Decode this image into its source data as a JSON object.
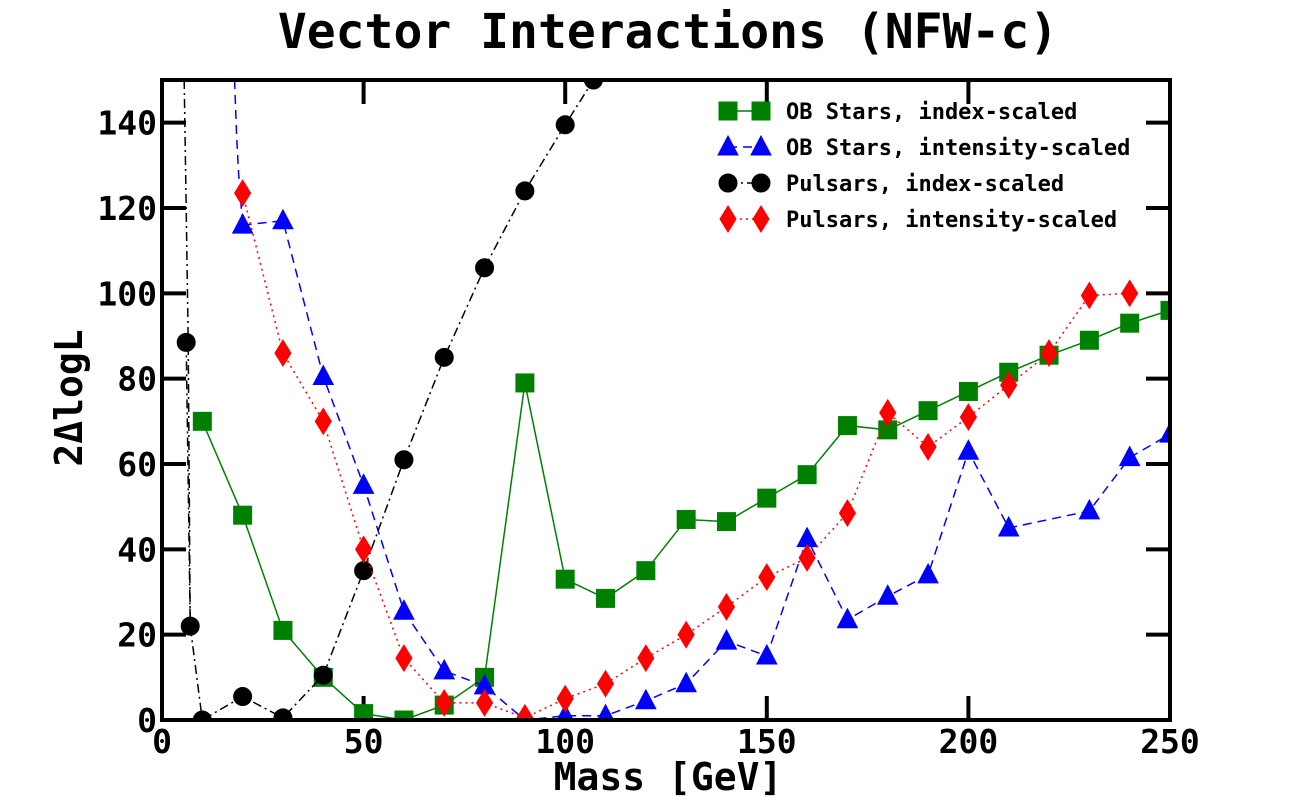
{
  "chart_data": {
    "type": "line",
    "title": "Vector Interactions (NFW-c)",
    "xlabel": "Mass [GeV]",
    "ylabel": "2ΔlogL",
    "xlim": [
      0,
      250
    ],
    "ylim": [
      0,
      150
    ],
    "xticks": [
      0,
      50,
      100,
      150,
      200,
      250
    ],
    "yticks": [
      0,
      20,
      40,
      60,
      80,
      100,
      120,
      140
    ],
    "legend_position": "top-right",
    "series": [
      {
        "name": "OB Stars, index-scaled",
        "color": "#008000",
        "marker": "square",
        "linestyle": "solid",
        "x": [
          10,
          20,
          30,
          40,
          50,
          60,
          70,
          80,
          90,
          100,
          110,
          120,
          130,
          140,
          150,
          160,
          170,
          180,
          190,
          200,
          210,
          220,
          230,
          240,
          250
        ],
        "y": [
          70,
          48,
          21,
          10,
          1.5,
          0,
          3.5,
          10,
          79,
          33,
          28.5,
          35,
          47,
          46.5,
          52,
          57.5,
          69,
          68,
          72.5,
          77,
          81.5,
          85.5,
          89,
          93,
          96
        ]
      },
      {
        "name": "OB Stars, intensity-scaled",
        "color": "#0000ff",
        "marker": "triangle",
        "linestyle": "dashed",
        "curve_x": [
          18,
          18.5,
          19,
          20
        ],
        "curve_y": [
          150,
          137,
          128,
          116
        ],
        "x": [
          20,
          30,
          40,
          50,
          60,
          70,
          80,
          90,
          100,
          110,
          120,
          130,
          140,
          150,
          160,
          170,
          180,
          190,
          200,
          210,
          230,
          240,
          250
        ],
        "y": [
          116,
          117,
          80.5,
          55,
          25.5,
          11.5,
          8,
          0,
          1,
          1,
          4.5,
          8.5,
          18.5,
          15,
          42.5,
          23.5,
          29,
          34,
          63,
          45,
          49,
          61.5,
          67
        ]
      },
      {
        "name": "Pulsars, index-scaled",
        "color": "#000000",
        "marker": "circle",
        "linestyle": "dashdot",
        "curve_x": [
          5.5,
          6,
          6.5,
          7
        ],
        "curve_y": [
          150,
          120,
          88.5,
          22
        ],
        "x": [
          6,
          7,
          10,
          20,
          30,
          40,
          50,
          60,
          70,
          80,
          90,
          100,
          107
        ],
        "y": [
          88.5,
          22,
          0,
          5.5,
          0.5,
          10.5,
          35,
          61,
          85,
          106,
          124,
          139.5,
          150
        ]
      },
      {
        "name": "Pulsars, intensity-scaled",
        "color": "#ff0000",
        "marker": "diamond",
        "linestyle": "dotted",
        "x": [
          20,
          30,
          40,
          50,
          60,
          70,
          80,
          90,
          100,
          110,
          120,
          130,
          140,
          150,
          160,
          170,
          180,
          190,
          200,
          210,
          220,
          230,
          240
        ],
        "y": [
          123.5,
          86,
          70,
          40,
          14.5,
          4,
          4,
          0.5,
          5,
          8.5,
          14.5,
          20,
          26.5,
          33.5,
          38,
          48.5,
          72,
          64,
          71,
          78.5,
          86,
          99.5,
          100
        ]
      }
    ]
  }
}
